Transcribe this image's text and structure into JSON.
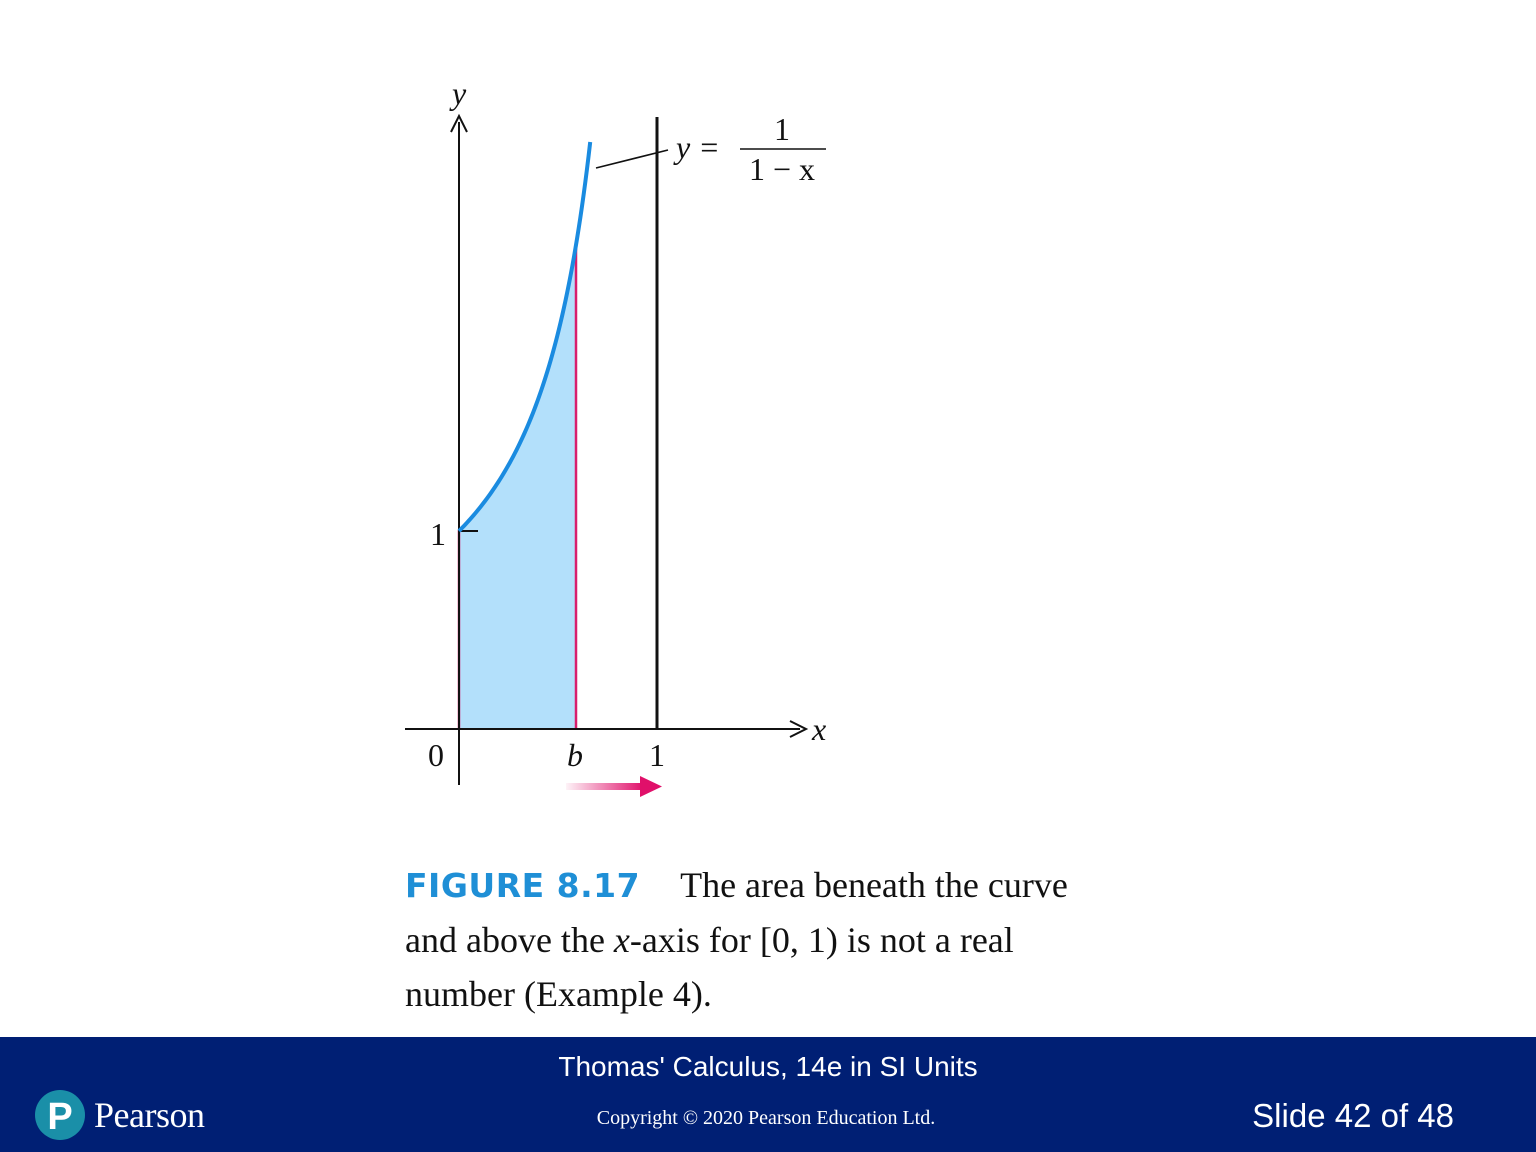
{
  "figure": {
    "axis_x_label": "x",
    "axis_y_label": "y",
    "tick_origin": "0",
    "tick_b": "b",
    "tick_x_one": "1",
    "tick_y_one": "1",
    "equation": {
      "lhs": "y =",
      "numerator": "1",
      "denominator": "1 − x"
    },
    "colors": {
      "curve": "#1a8be0",
      "fill": "#b3e0fb",
      "bounds": "#d81f6d",
      "arrow": "#e0106a",
      "axes": "#111111"
    },
    "icons": [
      "arrow-right-icon"
    ]
  },
  "caption": {
    "label": "FIGURE 8.17",
    "part1": "The area beneath the curve and above the ",
    "var": "x",
    "part2": "-axis for [0, 1) is not a real number (Example 4)."
  },
  "footer": {
    "book_title": "Thomas' Calculus, 14e in SI Units",
    "copyright": "Copyright © 2020 Pearson Education Ltd.",
    "slide_number": "Slide 42 of 48",
    "brand": "Pearson",
    "brand_mark": "P",
    "colors": {
      "background": "#001f74",
      "logo": "#1a8fa8"
    }
  }
}
